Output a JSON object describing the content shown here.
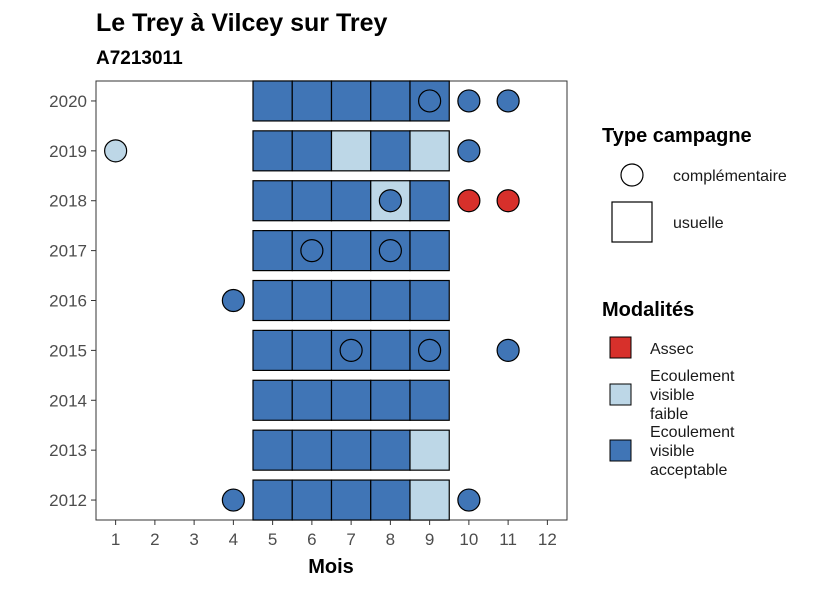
{
  "chart_data": {
    "type": "heatmap",
    "title": "Le Trey à Vilcey sur Trey",
    "subtitle": "A7213011",
    "xlabel": "Mois",
    "ylabel": "",
    "x_ticks": [
      "1",
      "2",
      "3",
      "4",
      "5",
      "6",
      "7",
      "8",
      "9",
      "10",
      "11",
      "12"
    ],
    "y_ticks": [
      "2012",
      "2013",
      "2014",
      "2015",
      "2016",
      "2017",
      "2018",
      "2019",
      "2020"
    ],
    "xlim": [
      0.5,
      12.5
    ],
    "ylim": [
      2011.6,
      2020.4
    ],
    "grid": false,
    "legend_position": "right",
    "legend_shape": {
      "title": "Type campagne",
      "items": [
        {
          "label": "complémentaire",
          "shape": "circle"
        },
        {
          "label": "usuelle",
          "shape": "square"
        }
      ]
    },
    "legend_fill": {
      "title": "Modalités",
      "items": [
        {
          "label": "Assec",
          "lines": [
            "Assec"
          ],
          "color": "#d7302b"
        },
        {
          "label": "Ecoulement visible faible",
          "lines": [
            "Ecoulement",
            "visible",
            "faible"
          ],
          "color": "#bdd7e7"
        },
        {
          "label": "Ecoulement visible acceptable",
          "lines": [
            "Ecoulement",
            "visible",
            "acceptable"
          ],
          "color": "#4075b6"
        }
      ]
    },
    "usuelle": [
      {
        "year": 2020,
        "months": [
          5,
          6,
          7,
          8,
          9
        ],
        "values": [
          "acceptable",
          "acceptable",
          "acceptable",
          "acceptable",
          "acceptable"
        ]
      },
      {
        "year": 2019,
        "months": [
          5,
          6,
          7,
          8,
          9
        ],
        "values": [
          "acceptable",
          "acceptable",
          "faible",
          "acceptable",
          "faible"
        ]
      },
      {
        "year": 2018,
        "months": [
          5,
          6,
          7,
          8,
          9
        ],
        "values": [
          "acceptable",
          "acceptable",
          "acceptable",
          "faible",
          "acceptable"
        ]
      },
      {
        "year": 2017,
        "months": [
          5,
          6,
          7,
          8,
          9
        ],
        "values": [
          "acceptable",
          "acceptable",
          "acceptable",
          "acceptable",
          "acceptable"
        ]
      },
      {
        "year": 2016,
        "months": [
          5,
          6,
          7,
          8,
          9
        ],
        "values": [
          "acceptable",
          "acceptable",
          "acceptable",
          "acceptable",
          "acceptable"
        ]
      },
      {
        "year": 2015,
        "months": [
          5,
          6,
          7,
          8,
          9
        ],
        "values": [
          "acceptable",
          "acceptable",
          "acceptable",
          "acceptable",
          "acceptable"
        ]
      },
      {
        "year": 2014,
        "months": [
          5,
          6,
          7,
          8,
          9
        ],
        "values": [
          "acceptable",
          "acceptable",
          "acceptable",
          "acceptable",
          "acceptable"
        ]
      },
      {
        "year": 2013,
        "months": [
          5,
          6,
          7,
          8,
          9
        ],
        "values": [
          "acceptable",
          "acceptable",
          "acceptable",
          "acceptable",
          "faible"
        ]
      },
      {
        "year": 2012,
        "months": [
          5,
          6,
          7,
          8,
          9
        ],
        "values": [
          "acceptable",
          "acceptable",
          "acceptable",
          "acceptable",
          "faible"
        ]
      }
    ],
    "complementaire": [
      {
        "year": 2020,
        "month": 9,
        "value": "acceptable"
      },
      {
        "year": 2020,
        "month": 10,
        "value": "acceptable"
      },
      {
        "year": 2020,
        "month": 11,
        "value": "acceptable"
      },
      {
        "year": 2019,
        "month": 1,
        "value": "faible"
      },
      {
        "year": 2019,
        "month": 10,
        "value": "acceptable"
      },
      {
        "year": 2018,
        "month": 8,
        "value": "acceptable"
      },
      {
        "year": 2018,
        "month": 10,
        "value": "assec"
      },
      {
        "year": 2018,
        "month": 11,
        "value": "assec"
      },
      {
        "year": 2017,
        "month": 6,
        "value": "acceptable"
      },
      {
        "year": 2017,
        "month": 8,
        "value": "acceptable"
      },
      {
        "year": 2016,
        "month": 4,
        "value": "acceptable"
      },
      {
        "year": 2015,
        "month": 7,
        "value": "acceptable"
      },
      {
        "year": 2015,
        "month": 9,
        "value": "acceptable"
      },
      {
        "year": 2015,
        "month": 11,
        "value": "acceptable"
      },
      {
        "year": 2012,
        "month": 4,
        "value": "acceptable"
      },
      {
        "year": 2012,
        "month": 10,
        "value": "acceptable"
      }
    ],
    "colors": {
      "assec": "#d7302b",
      "faible": "#bdd7e7",
      "acceptable": "#4075b6"
    }
  }
}
